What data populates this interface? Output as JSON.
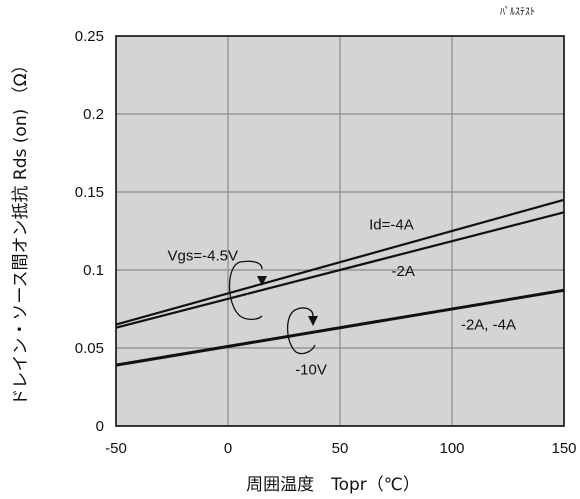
{
  "corner_note": "ﾊﾟﾙｽﾃｽﾄ",
  "colors": {
    "plot_background": "#d4d4d4",
    "grid": "#8a8a8a",
    "line": "#111111"
  },
  "chart_data": {
    "type": "line",
    "xlabel": "周囲温度　Topr（℃）",
    "ylabel": "ドレイン・ソース間オン抵抗  Rds (on) （Ω）",
    "xlim": [
      -50,
      150
    ],
    "ylim": [
      0,
      0.25
    ],
    "grid": true,
    "x_ticks": [
      "-50",
      "0",
      "50",
      "100",
      "150"
    ],
    "y_ticks": [
      "0",
      "0.05",
      "0.1",
      "0.15",
      "0.2",
      "0.25"
    ],
    "series": [
      {
        "x": [
          -50,
          150
        ],
        "y": [
          0.065,
          0.145
        ]
      },
      {
        "x": [
          -50,
          150
        ],
        "y": [
          0.063,
          0.137
        ]
      },
      {
        "x": [
          -50,
          150
        ],
        "y": [
          0.039,
          0.087
        ]
      }
    ],
    "annotations": [
      {
        "text": "Id=-4A",
        "x": 63,
        "y": 0.126
      },
      {
        "text": "-2A",
        "x": 73,
        "y": 0.096
      },
      {
        "text": "Vgs=-4.5V",
        "x": -27,
        "y": 0.106
      },
      {
        "text": "-2A, -4A",
        "x": 104,
        "y": 0.062
      },
      {
        "text": "-10V",
        "x": 30,
        "y": 0.033
      }
    ]
  }
}
